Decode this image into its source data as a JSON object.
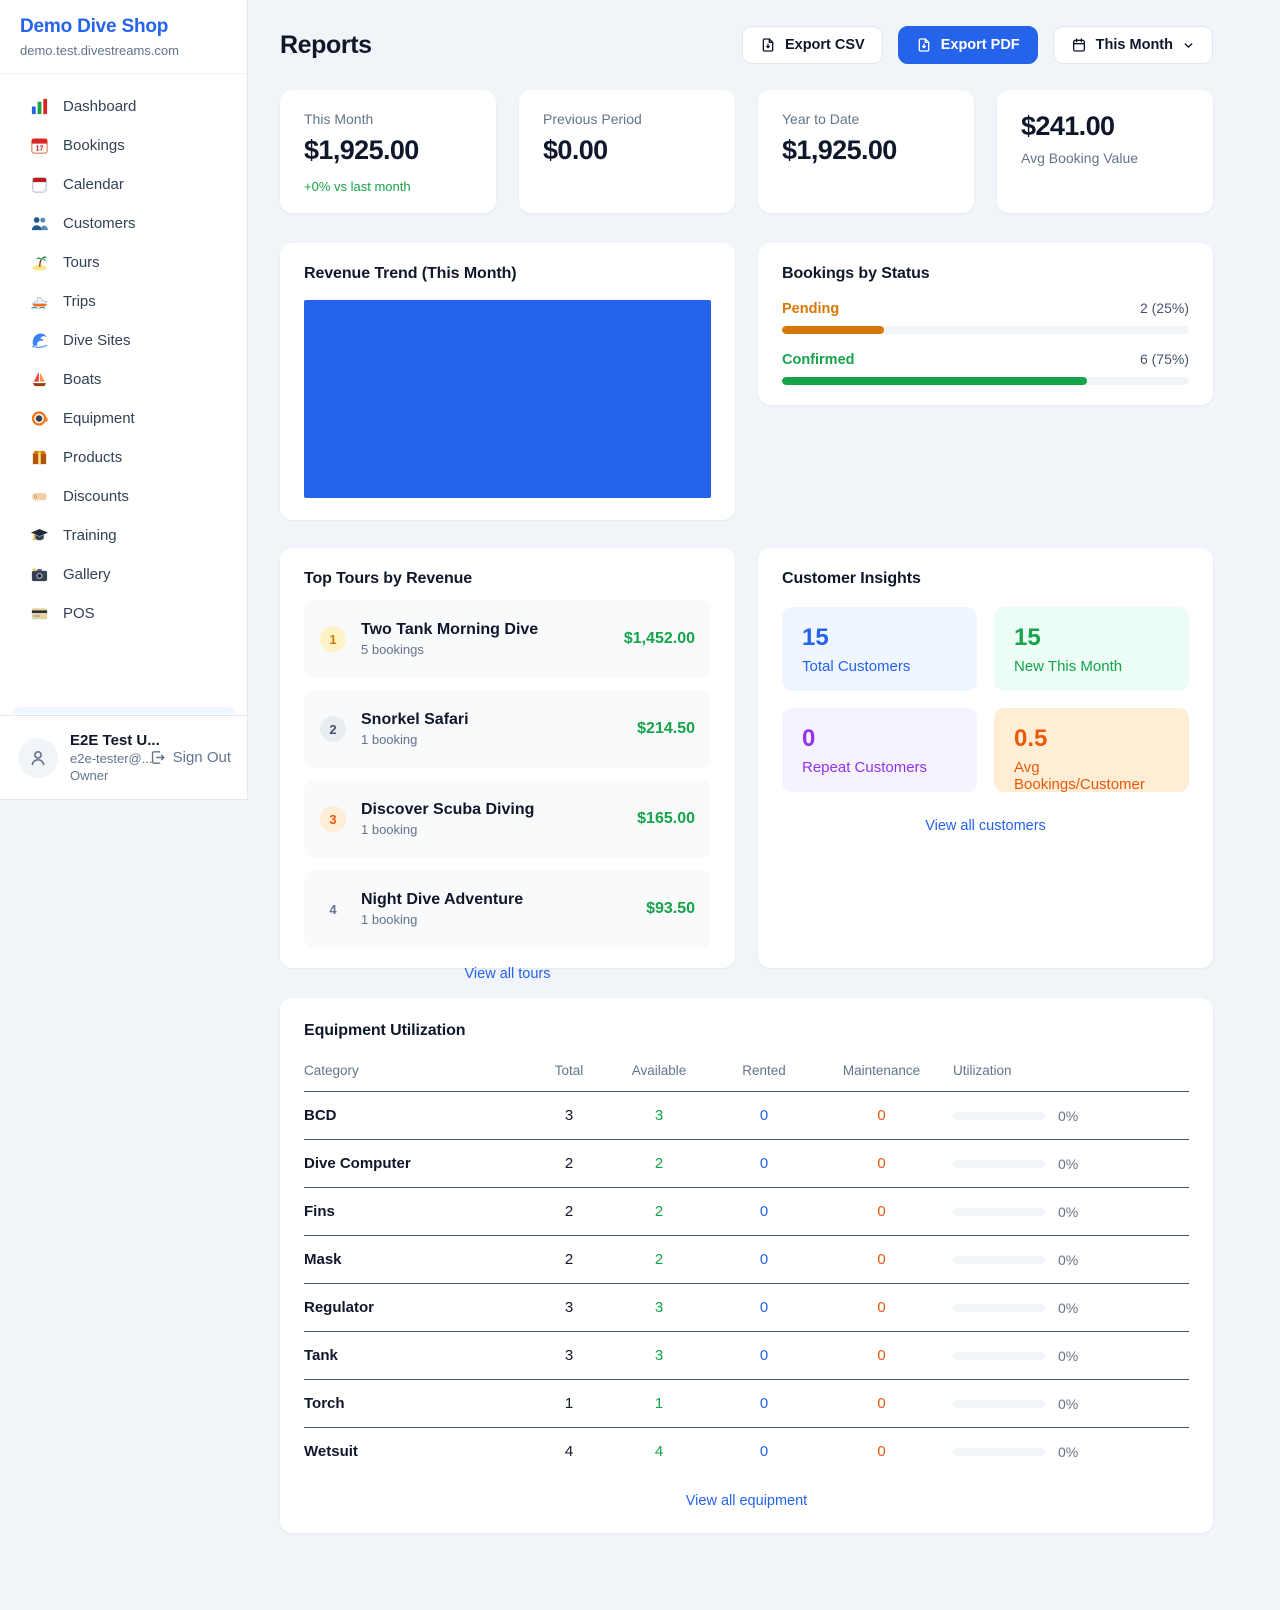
{
  "sidebar": {
    "brand": {
      "name": "Demo Dive Shop",
      "domain": "demo.test.divestreams.com"
    },
    "items": [
      {
        "label": "Dashboard",
        "icon": "bar-chart-icon"
      },
      {
        "label": "Bookings",
        "icon": "calendar-date-icon"
      },
      {
        "label": "Calendar",
        "icon": "tear-off-calendar-icon"
      },
      {
        "label": "Customers",
        "icon": "people-icon"
      },
      {
        "label": "Tours",
        "icon": "island-icon"
      },
      {
        "label": "Trips",
        "icon": "speedboat-icon"
      },
      {
        "label": "Dive Sites",
        "icon": "wave-icon"
      },
      {
        "label": "Boats",
        "icon": "sailboat-icon"
      },
      {
        "label": "Equipment",
        "icon": "dive-mask-icon"
      },
      {
        "label": "Products",
        "icon": "package-icon"
      },
      {
        "label": "Discounts",
        "icon": "tag-icon"
      },
      {
        "label": "Training",
        "icon": "graduation-cap-icon"
      },
      {
        "label": "Gallery",
        "icon": "camera-icon"
      },
      {
        "label": "POS",
        "icon": "credit-card-icon"
      }
    ],
    "user": {
      "name": "E2E Test U...",
      "email": "e2e-tester@...",
      "role": "Owner",
      "sign_out_label": "Sign Out"
    }
  },
  "header": {
    "title": "Reports",
    "export_csv_label": "Export CSV",
    "export_pdf_label": "Export PDF",
    "period_label": "This Month"
  },
  "stats": [
    {
      "label": "This Month",
      "value": "$1,925.00",
      "delta": "+0% vs last month"
    },
    {
      "label": "Previous Period",
      "value": "$0.00"
    },
    {
      "label": "Year to Date",
      "value": "$1,925.00"
    },
    {
      "label": "Avg Booking Value",
      "value": "$241.00"
    }
  ],
  "revenue_trend": {
    "title": "Revenue Trend (This Month)"
  },
  "chart_data": {
    "type": "bar",
    "title": "Revenue Trend (This Month)",
    "categories": [
      "This Month"
    ],
    "series": [
      {
        "name": "Revenue",
        "values": [
          1925
        ]
      }
    ],
    "note": "single bar fills entire plot area as a solid blue block",
    "bar_color": "#2563eb"
  },
  "bookings_by_status": {
    "title": "Bookings by Status",
    "rows": [
      {
        "label": "Pending",
        "count_text": "2 (25%)",
        "count": 2,
        "percent": 25,
        "color": "#d97706"
      },
      {
        "label": "Confirmed",
        "count_text": "6 (75%)",
        "count": 6,
        "percent": 75,
        "color": "#16a34a"
      }
    ]
  },
  "top_tours": {
    "title": "Top Tours by Revenue",
    "rows": [
      {
        "rank": "1",
        "name": "Two Tank Morning Dive",
        "sub": "5 bookings",
        "amount": "$1,452.00"
      },
      {
        "rank": "2",
        "name": "Snorkel Safari",
        "sub": "1 booking",
        "amount": "$214.50"
      },
      {
        "rank": "3",
        "name": "Discover Scuba Diving",
        "sub": "1 booking",
        "amount": "$165.00"
      },
      {
        "rank": "4",
        "name": "Night Dive Adventure",
        "sub": "1 booking",
        "amount": "$93.50"
      }
    ],
    "view_all_label": "View all tours"
  },
  "customer_insights": {
    "title": "Customer Insights",
    "tiles": [
      {
        "value": "15",
        "label": "Total Customers",
        "color": "#2563eb"
      },
      {
        "value": "15",
        "label": "New This Month",
        "color": "#16a34a"
      },
      {
        "value": "0",
        "label": "Repeat Customers",
        "color": "#9333ea"
      },
      {
        "value": "0.5",
        "label": "Avg Bookings/Customer",
        "color": "#ea580c"
      }
    ],
    "view_all_label": "View all customers"
  },
  "equipment": {
    "title": "Equipment Utilization",
    "columns": [
      "Category",
      "Total",
      "Available",
      "Rented",
      "Maintenance",
      "Utilization"
    ],
    "rows": [
      {
        "category": "BCD",
        "total": "3",
        "available": "3",
        "rented": "0",
        "maintenance": "0",
        "utilization": "0%",
        "percent": 0
      },
      {
        "category": "Dive Computer",
        "total": "2",
        "available": "2",
        "rented": "0",
        "maintenance": "0",
        "utilization": "0%",
        "percent": 0
      },
      {
        "category": "Fins",
        "total": "2",
        "available": "2",
        "rented": "0",
        "maintenance": "0",
        "utilization": "0%",
        "percent": 0
      },
      {
        "category": "Mask",
        "total": "2",
        "available": "2",
        "rented": "0",
        "maintenance": "0",
        "utilization": "0%",
        "percent": 0
      },
      {
        "category": "Regulator",
        "total": "3",
        "available": "3",
        "rented": "0",
        "maintenance": "0",
        "utilization": "0%",
        "percent": 0
      },
      {
        "category": "Tank",
        "total": "3",
        "available": "3",
        "rented": "0",
        "maintenance": "0",
        "utilization": "0%",
        "percent": 0
      },
      {
        "category": "Torch",
        "total": "1",
        "available": "1",
        "rented": "0",
        "maintenance": "0",
        "utilization": "0%",
        "percent": 0
      },
      {
        "category": "Wetsuit",
        "total": "4",
        "available": "4",
        "rented": "0",
        "maintenance": "0",
        "utilization": "0%",
        "percent": 0
      }
    ],
    "view_all_label": "View all equipment"
  },
  "colors": {
    "accent_blue": "#2563eb",
    "green": "#16a34a",
    "pending_orange": "#d97706",
    "maintenance_orange": "#ea580c",
    "purple": "#9333ea",
    "page_background": "#f1f5f9",
    "muted_text": "#64748b"
  }
}
